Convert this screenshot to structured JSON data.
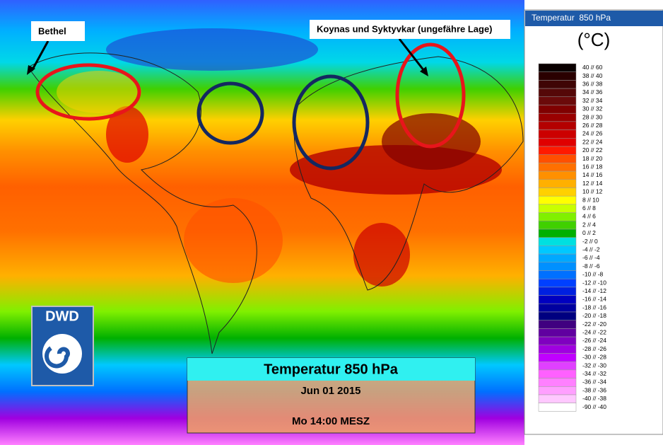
{
  "callouts": [
    {
      "label": "Bethel"
    },
    {
      "label": "Koynas und Syktyvkar (ungefähre Lage)"
    }
  ],
  "logo": {
    "text": "DWD"
  },
  "info_box": {
    "title": "Temperatur 850 hPa",
    "date": "Jun 01 2015",
    "time": "Mo 14:00 MESZ"
  },
  "legend": {
    "title": "Temperatur  850 hPa",
    "unit": "(°C)",
    "items": [
      {
        "label": "40 // 60",
        "color": "#0a0000"
      },
      {
        "label": "38 // 40",
        "color": "#2a0000"
      },
      {
        "label": "36 // 38",
        "color": "#3f0505"
      },
      {
        "label": "34 // 36",
        "color": "#550808"
      },
      {
        "label": "32 // 34",
        "color": "#6b0a0a"
      },
      {
        "label": "30 // 32",
        "color": "#800000"
      },
      {
        "label": "28 // 30",
        "color": "#9a0000"
      },
      {
        "label": "26 // 28",
        "color": "#b40000"
      },
      {
        "label": "24 // 26",
        "color": "#cc0000"
      },
      {
        "label": "22 // 24",
        "color": "#e00000"
      },
      {
        "label": "20 // 22",
        "color": "#ff1a00"
      },
      {
        "label": "18 // 20",
        "color": "#ff5000"
      },
      {
        "label": "16 // 18",
        "color": "#ff7000"
      },
      {
        "label": "14 // 16",
        "color": "#ff9000"
      },
      {
        "label": "12 // 14",
        "color": "#ffb000"
      },
      {
        "label": "10 // 12",
        "color": "#ffd000"
      },
      {
        "label": "8 // 10",
        "color": "#ffff00"
      },
      {
        "label": "6 // 8",
        "color": "#c8ff00"
      },
      {
        "label": "4 // 6",
        "color": "#80f000"
      },
      {
        "label": "2 // 4",
        "color": "#40d000"
      },
      {
        "label": "0 // 2",
        "color": "#00b000"
      },
      {
        "label": "-2 // 0",
        "color": "#00e0e0"
      },
      {
        "label": "-4 // -2",
        "color": "#00c8ff"
      },
      {
        "label": "-6 // -4",
        "color": "#00a8ff"
      },
      {
        "label": "-8 // -6",
        "color": "#0090ff"
      },
      {
        "label": "-10 // -8",
        "color": "#0070ff"
      },
      {
        "label": "-12 // -10",
        "color": "#0040ff"
      },
      {
        "label": "-14 // -12",
        "color": "#0020e0"
      },
      {
        "label": "-16 // -14",
        "color": "#0000c0"
      },
      {
        "label": "-18 // -16",
        "color": "#0000a0"
      },
      {
        "label": "-20 // -18",
        "color": "#000080"
      },
      {
        "label": "-22 // -20",
        "color": "#400080"
      },
      {
        "label": "-24 // -22",
        "color": "#6000a0"
      },
      {
        "label": "-26 // -24",
        "color": "#8000c0"
      },
      {
        "label": "-28 // -26",
        "color": "#a000e0"
      },
      {
        "label": "-30 // -28",
        "color": "#c000ff"
      },
      {
        "label": "-32 // -30",
        "color": "#e040ff"
      },
      {
        "label": "-34 // -32",
        "color": "#ff60ff"
      },
      {
        "label": "-36 // -34",
        "color": "#ff80ff"
      },
      {
        "label": "-38 // -36",
        "color": "#ffa0ff"
      },
      {
        "label": "-40 // -38",
        "color": "#ffc8ff"
      },
      {
        "label": "-90 // -40",
        "color": "#ffffff"
      }
    ]
  }
}
